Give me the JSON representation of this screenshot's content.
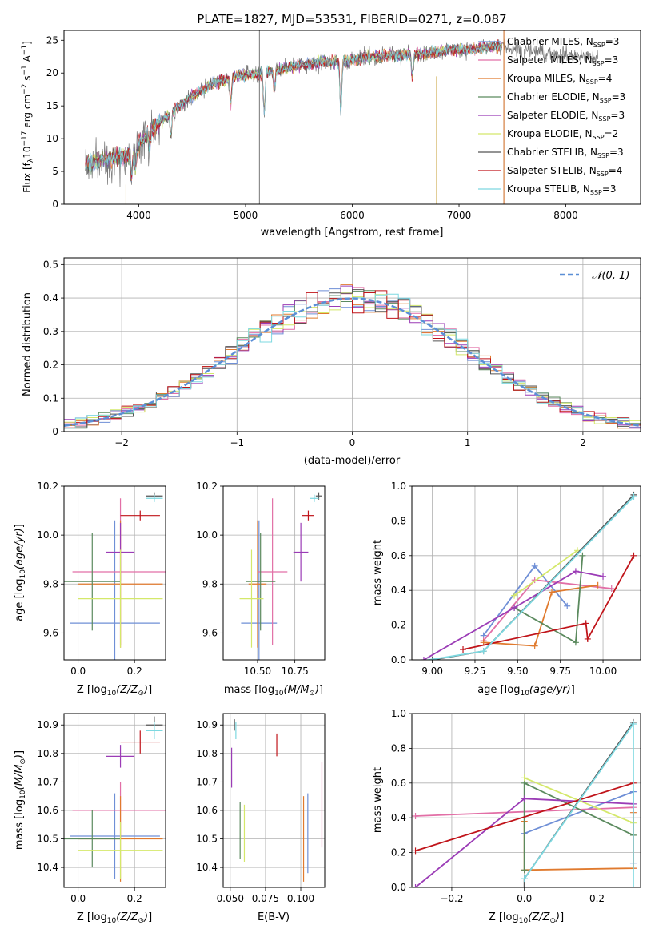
{
  "figure_title": "PLATE=1827, MJD=53531, FIBERID=0271, z=0.087",
  "colors": {
    "Chabrier MILES": "#6f8fd6",
    "Salpeter MILES": "#e26fa6",
    "Kroupa MILES": "#e07a2e",
    "Chabrier ELODIE": "#5b8a5e",
    "Salpeter ELODIE": "#9b3cb6",
    "Kroupa ELODIE": "#d4e86a",
    "Chabrier STELIB": "#555555",
    "Salpeter STELIB": "#c0141a",
    "Kroupa STELIB": "#7dd8e0",
    "data": "#777777",
    "normal": "#5b8fd6"
  },
  "chart_data": [
    {
      "type": "line",
      "xlabel": "wavelength [Angstrom, rest frame]",
      "ylabel": "Flux [f_λ10^−17 erg cm^−2 s^−1 A^−1]",
      "xlim": [
        3300,
        8700
      ],
      "ylim": [
        0,
        26.5
      ],
      "xticks": [
        4000,
        5000,
        6000,
        7000,
        8000
      ],
      "yticks": [
        0,
        5,
        10,
        15,
        20,
        25
      ],
      "grid": false,
      "legend_position": "right",
      "series": [
        {
          "name": "Chabrier MILES, N_SSP=3",
          "legend_main": "Chabrier MILES, N",
          "legend_value": "=3",
          "key": "Chabrier MILES"
        },
        {
          "name": "Salpeter MILES, N_SSP=3",
          "legend_main": "Salpeter MILES, N",
          "legend_value": "=3",
          "key": "Salpeter MILES"
        },
        {
          "name": "Kroupa MILES, N_SSP=4",
          "legend_main": "Kroupa MILES, N",
          "legend_value": "=4",
          "key": "Kroupa MILES"
        },
        {
          "name": "Chabrier ELODIE, N_SSP=3",
          "legend_main": "Chabrier ELODIE, N",
          "legend_value": "=3",
          "key": "Chabrier ELODIE"
        },
        {
          "name": "Salpeter ELODIE, N_SSP=3",
          "legend_main": "Salpeter ELODIE, N",
          "legend_value": "=3",
          "key": "Salpeter ELODIE"
        },
        {
          "name": "Kroupa ELODIE, N_SSP=2",
          "legend_main": "Kroupa ELODIE, N",
          "legend_value": "=2",
          "key": "Kroupa ELODIE"
        },
        {
          "name": "Chabrier STELIB, N_SSP=3",
          "legend_main": "Chabrier STELIB, N",
          "legend_value": "=3",
          "key": "Chabrier STELIB"
        },
        {
          "name": "Salpeter STELIB, N_SSP=4",
          "legend_main": "Salpeter STELIB, N",
          "legend_value": "=4",
          "key": "Salpeter STELIB"
        },
        {
          "name": "Kroupa STELIB, N_SSP=3",
          "legend_main": "Kroupa STELIB, N",
          "legend_value": "=3",
          "key": "Kroupa STELIB"
        }
      ],
      "legend_subscript": "SSP",
      "continuum": {
        "x": [
          3500,
          3700,
          3900,
          4100,
          4300,
          4500,
          4700,
          4900,
          5100,
          5300,
          5500,
          5700,
          5900,
          6100,
          6300,
          6500,
          6700,
          6900,
          7100,
          7300,
          7500,
          7700,
          7900,
          8100,
          8300
        ],
        "y": [
          6,
          7,
          7.5,
          11,
          14,
          16.5,
          18.5,
          19.5,
          19.8,
          20.5,
          21.2,
          21.6,
          21.8,
          22.3,
          22.6,
          22.8,
          23.0,
          23.5,
          23.6,
          24.0,
          23.8,
          23.3,
          23.0,
          22.6,
          22.3
        ]
      },
      "data_range": [
        3500,
        8300
      ],
      "model_range": [
        3500,
        7400
      ],
      "spikes": [
        {
          "x": 5130,
          "ymax": 26.5
        },
        {
          "x": 6790,
          "ymax": 0
        },
        {
          "x": 7420,
          "ymax": 26.5
        }
      ]
    },
    {
      "type": "line",
      "subtype": "step-histogram",
      "xlabel": "(data-model)/error",
      "ylabel": "Normed distribution",
      "xlim": [
        -2.5,
        2.5
      ],
      "ylim": [
        0,
        0.52
      ],
      "xticks": [
        -2,
        -1,
        0,
        1,
        2
      ],
      "xtick_labels": [
        "−2",
        "−1",
        "0",
        "1",
        "2"
      ],
      "yticks": [
        0.0,
        0.1,
        0.2,
        0.3,
        0.4,
        0.5
      ],
      "grid": true,
      "legend_position": "top-right",
      "reference_label": "𝒩(0, 1)",
      "bin_width": 0.1,
      "bin_range": [
        -2.5,
        2.5
      ]
    },
    {
      "type": "scatter",
      "subtype": "errorbar",
      "xlabel": "Z [log10(Z/Z⊙)]",
      "ylabel": "age  [log10(age/yr)]",
      "xlim": [
        -0.05,
        0.31
      ],
      "ylim": [
        9.49,
        10.2
      ],
      "xticks": [
        0.0,
        0.2
      ],
      "xtick_labels": [
        "0.0",
        "0.2"
      ],
      "yticks": [
        9.6,
        9.8,
        10.0,
        10.2
      ],
      "ytick_labels": [
        "9.6",
        "9.8",
        "10.0",
        "10.2"
      ],
      "grid": true,
      "points": [
        {
          "key": "Chabrier MILES",
          "x": 0.13,
          "xerr": 0.16,
          "y": 9.64,
          "yerr": 0.42
        },
        {
          "key": "Salpeter MILES",
          "x": 0.15,
          "xerr": 0.17,
          "y": 9.85,
          "yerr": 0.3
        },
        {
          "key": "Kroupa MILES",
          "x": 0.15,
          "xerr": 0.15,
          "y": 9.8,
          "yerr": 0.26
        },
        {
          "key": "Chabrier ELODIE",
          "x": 0.05,
          "xerr": 0.1,
          "y": 9.81,
          "yerr": 0.2
        },
        {
          "key": "Salpeter ELODIE",
          "x": 0.15,
          "xerr": 0.05,
          "y": 9.93,
          "yerr": 0.12
        },
        {
          "key": "Kroupa ELODIE",
          "x": 0.15,
          "xerr": 0.15,
          "y": 9.74,
          "yerr": 0.2
        },
        {
          "key": "Chabrier STELIB",
          "x": 0.27,
          "xerr": 0.03,
          "y": 10.16,
          "yerr": 0.015
        },
        {
          "key": "Salpeter STELIB",
          "x": 0.22,
          "xerr": 0.07,
          "y": 10.08,
          "yerr": 0.02
        },
        {
          "key": "Kroupa STELIB",
          "x": 0.27,
          "xerr": 0.03,
          "y": 10.15,
          "yerr": 0.015
        }
      ]
    },
    {
      "type": "scatter",
      "subtype": "errorbar",
      "xlabel": "mass [log10(M/M⊙)]",
      "ylabel": "",
      "xlim": [
        10.27,
        10.95
      ],
      "ylim": [
        9.49,
        10.2
      ],
      "xticks": [
        10.5,
        10.75
      ],
      "xtick_labels": [
        "10.50",
        "10.75"
      ],
      "yticks": [
        9.6,
        9.8,
        10.0,
        10.2
      ],
      "ytick_labels": [
        "9.6",
        "9.8",
        "10.0",
        "10.2"
      ],
      "grid": true,
      "points": [
        {
          "key": "Chabrier MILES",
          "x": 10.51,
          "xerr": 0.12,
          "y": 9.64,
          "yerr": 0.42
        },
        {
          "key": "Salpeter MILES",
          "x": 10.6,
          "xerr": 0.1,
          "y": 9.85,
          "yerr": 0.3
        },
        {
          "key": "Kroupa MILES",
          "x": 10.5,
          "xerr": 0.06,
          "y": 9.8,
          "yerr": 0.26
        },
        {
          "key": "Chabrier ELODIE",
          "x": 10.52,
          "xerr": 0.1,
          "y": 9.81,
          "yerr": 0.2
        },
        {
          "key": "Salpeter ELODIE",
          "x": 10.79,
          "xerr": 0.05,
          "y": 9.93,
          "yerr": 0.12
        },
        {
          "key": "Kroupa ELODIE",
          "x": 10.46,
          "xerr": 0.08,
          "y": 9.74,
          "yerr": 0.2
        },
        {
          "key": "Chabrier STELIB",
          "x": 10.91,
          "xerr": 0.02,
          "y": 10.16,
          "yerr": 0.015
        },
        {
          "key": "Salpeter STELIB",
          "x": 10.84,
          "xerr": 0.04,
          "y": 10.08,
          "yerr": 0.02
        },
        {
          "key": "Kroupa STELIB",
          "x": 10.88,
          "xerr": 0.03,
          "y": 10.15,
          "yerr": 0.015
        }
      ]
    },
    {
      "type": "line",
      "xlabel": "age  [log10(age/yr)]",
      "ylabel": "mass weight",
      "xlim": [
        8.88,
        10.22
      ],
      "ylim": [
        0,
        1
      ],
      "xticks": [
        9.0,
        9.25,
        9.5,
        9.75,
        10.0
      ],
      "xtick_labels": [
        "9.00",
        "9.25",
        "9.50",
        "9.75",
        "10.00"
      ],
      "yticks": [
        0.0,
        0.2,
        0.4,
        0.6,
        0.8,
        1.0
      ],
      "ytick_labels": [
        "0.0",
        "0.2",
        "0.4",
        "0.6",
        "0.8",
        "1.0"
      ],
      "grid": true,
      "series": [
        {
          "key": "Chabrier MILES",
          "x": [
            9.3,
            9.6,
            9.79
          ],
          "y": [
            0.14,
            0.54,
            0.31
          ]
        },
        {
          "key": "Salpeter MILES",
          "x": [
            9.3,
            9.6,
            10.05
          ],
          "y": [
            0.11,
            0.46,
            0.41
          ]
        },
        {
          "key": "Kroupa MILES",
          "x": [
            9.3,
            9.6,
            9.7,
            9.97
          ],
          "y": [
            0.1,
            0.08,
            0.39,
            0.43
          ]
        },
        {
          "key": "Chabrier ELODIE",
          "x": [
            9.48,
            9.84,
            9.88
          ],
          "y": [
            0.3,
            0.1,
            0.6
          ]
        },
        {
          "key": "Salpeter ELODIE",
          "x": [
            8.95,
            9.48,
            9.84,
            10.0
          ],
          "y": [
            0.0,
            0.3,
            0.51,
            0.48
          ]
        },
        {
          "key": "Kroupa ELODIE",
          "x": [
            9.48,
            9.85
          ],
          "y": [
            0.37,
            0.63
          ]
        },
        {
          "key": "Chabrier STELIB",
          "x": [
            9.0,
            9.3,
            10.18
          ],
          "y": [
            0.0,
            0.05,
            0.95
          ]
        },
        {
          "key": "Salpeter STELIB",
          "x": [
            9.18,
            9.9,
            9.91,
            10.18
          ],
          "y": [
            0.06,
            0.21,
            0.12,
            0.6
          ]
        },
        {
          "key": "Kroupa STELIB",
          "x": [
            8.98,
            9.3,
            10.18
          ],
          "y": [
            0.0,
            0.05,
            0.94
          ]
        }
      ]
    },
    {
      "type": "scatter",
      "subtype": "errorbar",
      "xlabel": "Z [log10(Z/Z⊙)]",
      "ylabel": "mass [log10(M/M⊙)]",
      "xlim": [
        -0.05,
        0.31
      ],
      "ylim": [
        10.33,
        10.94
      ],
      "xticks": [
        0.0,
        0.2
      ],
      "xtick_labels": [
        "0.0",
        "0.2"
      ],
      "yticks": [
        10.4,
        10.5,
        10.6,
        10.7,
        10.8,
        10.9
      ],
      "ytick_labels": [
        "10.4",
        "10.5",
        "10.6",
        "10.7",
        "10.8",
        "10.9"
      ],
      "grid": true,
      "points": [
        {
          "key": "Chabrier MILES",
          "x": 0.13,
          "xerr": 0.16,
          "y": 10.51,
          "yerr": 0.15
        },
        {
          "key": "Salpeter MILES",
          "x": 0.15,
          "xerr": 0.17,
          "y": 10.6,
          "yerr": 0.1
        },
        {
          "key": "Kroupa MILES",
          "x": 0.15,
          "xerr": 0.15,
          "y": 10.5,
          "yerr": 0.15
        },
        {
          "key": "Chabrier ELODIE",
          "x": 0.05,
          "xerr": 0.1,
          "y": 10.5,
          "yerr": 0.1
        },
        {
          "key": "Salpeter ELODIE",
          "x": 0.15,
          "xerr": 0.05,
          "y": 10.79,
          "yerr": 0.04
        },
        {
          "key": "Kroupa ELODIE",
          "x": 0.15,
          "xerr": 0.15,
          "y": 10.46,
          "yerr": 0.1
        },
        {
          "key": "Chabrier STELIB",
          "x": 0.27,
          "xerr": 0.03,
          "y": 10.9,
          "yerr": 0.03
        },
        {
          "key": "Salpeter STELIB",
          "x": 0.22,
          "xerr": 0.07,
          "y": 10.84,
          "yerr": 0.04
        },
        {
          "key": "Kroupa STELIB",
          "x": 0.27,
          "xerr": 0.03,
          "y": 10.88,
          "yerr": 0.03
        }
      ]
    },
    {
      "type": "scatter",
      "subtype": "errorbar",
      "xlabel": "E(B-V)",
      "ylabel": "",
      "xlim": [
        0.045,
        0.117
      ],
      "ylim": [
        10.33,
        10.94
      ],
      "xticks": [
        0.05,
        0.075,
        0.1
      ],
      "xtick_labels": [
        "0.050",
        "0.075",
        "0.100"
      ],
      "yticks": [
        10.4,
        10.5,
        10.6,
        10.7,
        10.8,
        10.9
      ],
      "ytick_labels": [
        "10.4",
        "10.5",
        "10.6",
        "10.7",
        "10.8",
        "10.9"
      ],
      "grid": true,
      "points": [
        {
          "key": "Chabrier MILES",
          "x": 0.105,
          "xerr": 0.0,
          "y": 10.52,
          "yerr": 0.14
        },
        {
          "key": "Salpeter MILES",
          "x": 0.115,
          "xerr": 0.0,
          "y": 10.62,
          "yerr": 0.15
        },
        {
          "key": "Kroupa MILES",
          "x": 0.102,
          "xerr": 0.0,
          "y": 10.5,
          "yerr": 0.15
        },
        {
          "key": "Chabrier ELODIE",
          "x": 0.057,
          "xerr": 0.0,
          "y": 10.53,
          "yerr": 0.1
        },
        {
          "key": "Salpeter ELODIE",
          "x": 0.051,
          "xerr": 0.0,
          "y": 10.75,
          "yerr": 0.07
        },
        {
          "key": "Kroupa ELODIE",
          "x": 0.06,
          "xerr": 0.0,
          "y": 10.52,
          "yerr": 0.1
        },
        {
          "key": "Chabrier STELIB",
          "x": 0.053,
          "xerr": 0.0,
          "y": 10.9,
          "yerr": 0.02
        },
        {
          "key": "Salpeter STELIB",
          "x": 0.083,
          "xerr": 0.0,
          "y": 10.83,
          "yerr": 0.04
        },
        {
          "key": "Kroupa STELIB",
          "x": 0.054,
          "xerr": 0.0,
          "y": 10.88,
          "yerr": 0.03
        }
      ]
    },
    {
      "type": "line",
      "xlabel": "Z [log10(Z/Z⊙)]",
      "ylabel": "mass weight",
      "xlim": [
        -0.31,
        0.32
      ],
      "ylim": [
        0,
        1
      ],
      "xticks": [
        -0.2,
        0.0,
        0.2
      ],
      "xtick_labels": [
        "−0.2",
        "0.0",
        "0.2"
      ],
      "yticks": [
        0.0,
        0.2,
        0.4,
        0.6,
        0.8,
        1.0
      ],
      "ytick_labels": [
        "0.0",
        "0.2",
        "0.4",
        "0.6",
        "0.8",
        "1.0"
      ],
      "grid": true,
      "series": [
        {
          "key": "Chabrier MILES",
          "x": [
            0.0,
            0.3,
            0.3
          ],
          "y": [
            0.31,
            0.55,
            0.14
          ]
        },
        {
          "key": "Salpeter MILES",
          "x": [
            -0.3,
            0.3,
            0.3
          ],
          "y": [
            0.41,
            0.46,
            0.11
          ]
        },
        {
          "key": "Kroupa MILES",
          "x": [
            0.0,
            0.0,
            0.3,
            0.3
          ],
          "y": [
            0.38,
            0.1,
            0.11,
            0.43
          ]
        },
        {
          "key": "Chabrier ELODIE",
          "x": [
            0.0,
            0.0,
            0.3
          ],
          "y": [
            0.1,
            0.6,
            0.3
          ]
        },
        {
          "key": "Salpeter ELODIE",
          "x": [
            -0.3,
            0.0,
            0.3
          ],
          "y": [
            0.0,
            0.51,
            0.48
          ]
        },
        {
          "key": "Kroupa ELODIE",
          "x": [
            0.0,
            0.3
          ],
          "y": [
            0.63,
            0.37
          ]
        },
        {
          "key": "Chabrier STELIB",
          "x": [
            0.0,
            0.0,
            0.3
          ],
          "y": [
            0.0,
            0.05,
            0.95
          ]
        },
        {
          "key": "Salpeter STELIB",
          "x": [
            -0.3,
            0.3
          ],
          "y": [
            0.21,
            0.6
          ]
        },
        {
          "key": "Kroupa STELIB",
          "x": [
            0.0,
            0.3,
            0.3
          ],
          "y": [
            0.05,
            0.94,
            0.0
          ]
        }
      ]
    }
  ]
}
